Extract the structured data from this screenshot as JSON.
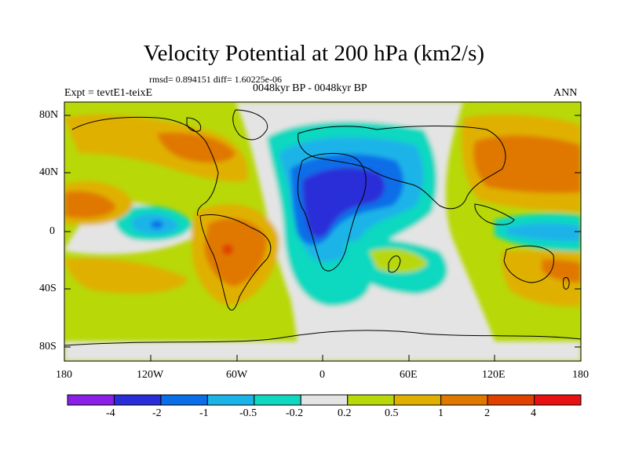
{
  "figure": {
    "title": "Velocity Potential at 200 hPa (km2/s)",
    "stats": "rmsd= 0.894151 diff= 1.60225e-06",
    "experiment": "Expt = tevtE1-teixE",
    "period": "0048kyr BP - 0048kyr BP",
    "season": "ANN"
  },
  "axes": {
    "lat_labels": [
      "80N",
      "40N",
      "0",
      "40S",
      "80S"
    ],
    "lon_labels": [
      "180",
      "120W",
      "60W",
      "0",
      "60E",
      "120E",
      "180"
    ]
  },
  "colorbar": {
    "labels": [
      "-4",
      "-2",
      "-1",
      "-0.5",
      "-0.2",
      "0.2",
      "0.5",
      "1",
      "2",
      "4"
    ],
    "colors": [
      "#8a20e8",
      "#2a2ed8",
      "#0a6ee8",
      "#1ab4e8",
      "#10d8c0",
      "#e4e4e4",
      "#b8d808",
      "#e0b000",
      "#e07800",
      "#e04000",
      "#e81010"
    ]
  },
  "palette": {
    "ocean_neutral": "#e4e4e4",
    "coast": "#000000"
  }
}
